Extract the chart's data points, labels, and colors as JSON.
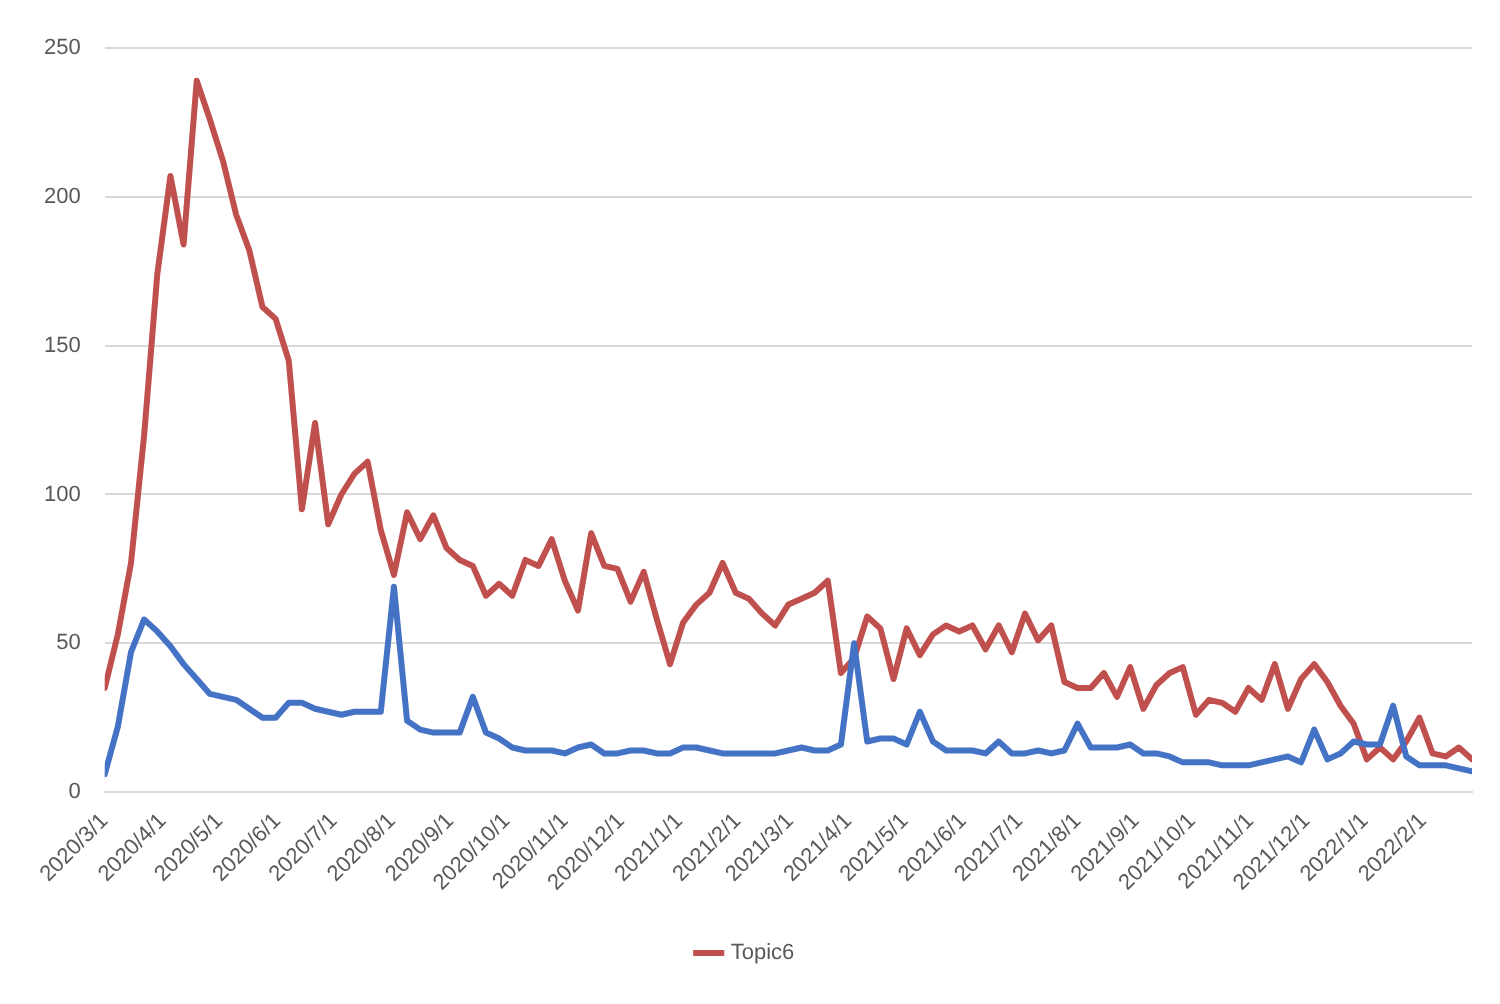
{
  "chart_data": {
    "type": "line",
    "legend": "bottom",
    "grid": "y",
    "marker": "none",
    "line_style": "solid",
    "x": [
      "2020-03-01",
      "2020-03-08",
      "2020-03-15",
      "2020-03-22",
      "2020-03-29",
      "2020-04-05",
      "2020-04-12",
      "2020-04-19",
      "2020-04-26",
      "2020-05-03",
      "2020-05-10",
      "2020-05-17",
      "2020-05-24",
      "2020-05-31",
      "2020-06-07",
      "2020-06-14",
      "2020-06-21",
      "2020-06-28",
      "2020-07-05",
      "2020-07-12",
      "2020-07-19",
      "2020-07-26",
      "2020-08-02",
      "2020-08-09",
      "2020-08-16",
      "2020-08-23",
      "2020-08-30",
      "2020-09-06",
      "2020-09-13",
      "2020-09-20",
      "2020-09-27",
      "2020-10-04",
      "2020-10-11",
      "2020-10-18",
      "2020-10-25",
      "2020-11-01",
      "2020-11-08",
      "2020-11-15",
      "2020-11-22",
      "2020-11-29",
      "2020-12-06",
      "2020-12-13",
      "2020-12-20",
      "2020-12-27",
      "2021-01-03",
      "2021-01-10",
      "2021-01-17",
      "2021-01-24",
      "2021-01-31",
      "2021-02-07",
      "2021-02-14",
      "2021-02-21",
      "2021-02-28",
      "2021-03-07",
      "2021-03-14",
      "2021-03-21",
      "2021-03-28",
      "2021-04-04",
      "2021-04-11",
      "2021-04-18",
      "2021-04-25",
      "2021-05-02",
      "2021-05-09",
      "2021-05-16",
      "2021-05-23",
      "2021-05-30",
      "2021-06-06",
      "2021-06-13",
      "2021-06-20",
      "2021-06-27",
      "2021-07-04",
      "2021-07-11",
      "2021-07-18",
      "2021-07-25",
      "2021-08-01",
      "2021-08-08",
      "2021-08-15",
      "2021-08-22",
      "2021-08-29",
      "2021-09-05",
      "2021-09-12",
      "2021-09-19",
      "2021-09-26",
      "2021-10-03",
      "2021-10-10",
      "2021-10-17",
      "2021-10-24",
      "2021-10-31",
      "2021-11-07",
      "2021-11-14",
      "2021-11-21",
      "2021-11-28",
      "2021-12-05",
      "2021-12-12",
      "2021-12-19",
      "2021-12-26",
      "2022-01-02",
      "2022-01-09",
      "2022-01-16",
      "2022-01-23",
      "2022-01-30",
      "2022-02-06",
      "2022-02-13",
      "2022-02-20",
      "2022-02-27"
    ],
    "series": [
      {
        "color": "#4472c4",
        "values": [
          6,
          22,
          47,
          58,
          54,
          49,
          43,
          38,
          33,
          32,
          31,
          28,
          25,
          25,
          30,
          30,
          28,
          27,
          26,
          27,
          27,
          27,
          69,
          24,
          21,
          20,
          20,
          20,
          32,
          20,
          18,
          15,
          14,
          14,
          14,
          13,
          15,
          16,
          13,
          13,
          14,
          14,
          13,
          13,
          15,
          15,
          14,
          13,
          13,
          13,
          13,
          13,
          14,
          15,
          14,
          14,
          16,
          50,
          17,
          18,
          18,
          16,
          27,
          17,
          14,
          14,
          14,
          13,
          17,
          13,
          13,
          14,
          13,
          14,
          23,
          15,
          15,
          15,
          16,
          13,
          13,
          12,
          10,
          10,
          10,
          9,
          9,
          9,
          10,
          11,
          12,
          10,
          21,
          11,
          13,
          17,
          16,
          16,
          29,
          12,
          9,
          9,
          9,
          8,
          7
        ]
      },
      {
        "name": "Topic6",
        "color": "#c0504d",
        "values": [
          35,
          53,
          77,
          120,
          174,
          207,
          184,
          239,
          226,
          212,
          194,
          182,
          163,
          159,
          145,
          95,
          124,
          90,
          100,
          107,
          111,
          88,
          73,
          94,
          85,
          93,
          82,
          78,
          76,
          66,
          70,
          66,
          78,
          76,
          85,
          71,
          61,
          87,
          76,
          75,
          64,
          74,
          58,
          43,
          57,
          63,
          67,
          77,
          67,
          65,
          60,
          56,
          63,
          65,
          67,
          71,
          40,
          45,
          59,
          55,
          38,
          55,
          46,
          53,
          56,
          54,
          56,
          48,
          56,
          47,
          60,
          51,
          56,
          37,
          35,
          35,
          40,
          32,
          42,
          28,
          36,
          40,
          42,
          26,
          31,
          30,
          27,
          35,
          31,
          43,
          28,
          38,
          43,
          37,
          29,
          23,
          11,
          15,
          11,
          17,
          25,
          13,
          12,
          15,
          11
        ]
      }
    ],
    "xlim": [
      "2020-03-01",
      "2022-02-27"
    ],
    "xticks": [
      {
        "value": "2020-03-01",
        "label": "2020/3/1"
      },
      {
        "value": "2020-04-01",
        "label": "2020/4/1"
      },
      {
        "value": "2020-05-01",
        "label": "2020/5/1"
      },
      {
        "value": "2020-06-01",
        "label": "2020/6/1"
      },
      {
        "value": "2020-07-01",
        "label": "2020/7/1"
      },
      {
        "value": "2020-08-01",
        "label": "2020/8/1"
      },
      {
        "value": "2020-09-01",
        "label": "2020/9/1"
      },
      {
        "value": "2020-10-01",
        "label": "2020/10/1"
      },
      {
        "value": "2020-11-01",
        "label": "2020/11/1"
      },
      {
        "value": "2020-12-01",
        "label": "2020/12/1"
      },
      {
        "value": "2021-01-01",
        "label": "2021/1/1"
      },
      {
        "value": "2021-02-01",
        "label": "2021/2/1"
      },
      {
        "value": "2021-03-01",
        "label": "2021/3/1"
      },
      {
        "value": "2021-04-01",
        "label": "2021/4/1"
      },
      {
        "value": "2021-05-01",
        "label": "2021/5/1"
      },
      {
        "value": "2021-06-01",
        "label": "2021/6/1"
      },
      {
        "value": "2021-07-01",
        "label": "2021/7/1"
      },
      {
        "value": "2021-08-01",
        "label": "2021/8/1"
      },
      {
        "value": "2021-09-01",
        "label": "2021/9/1"
      },
      {
        "value": "2021-10-01",
        "label": "2021/10/1"
      },
      {
        "value": "2021-11-01",
        "label": "2021/11/1"
      },
      {
        "value": "2021-12-01",
        "label": "2021/12/1"
      },
      {
        "value": "2022-01-01",
        "label": "2022/1/1"
      },
      {
        "value": "2022-02-01",
        "label": "2022/2/1"
      }
    ],
    "ylim": [
      0,
      250
    ],
    "yticks": [
      0,
      50,
      100,
      150,
      200,
      250
    ]
  }
}
